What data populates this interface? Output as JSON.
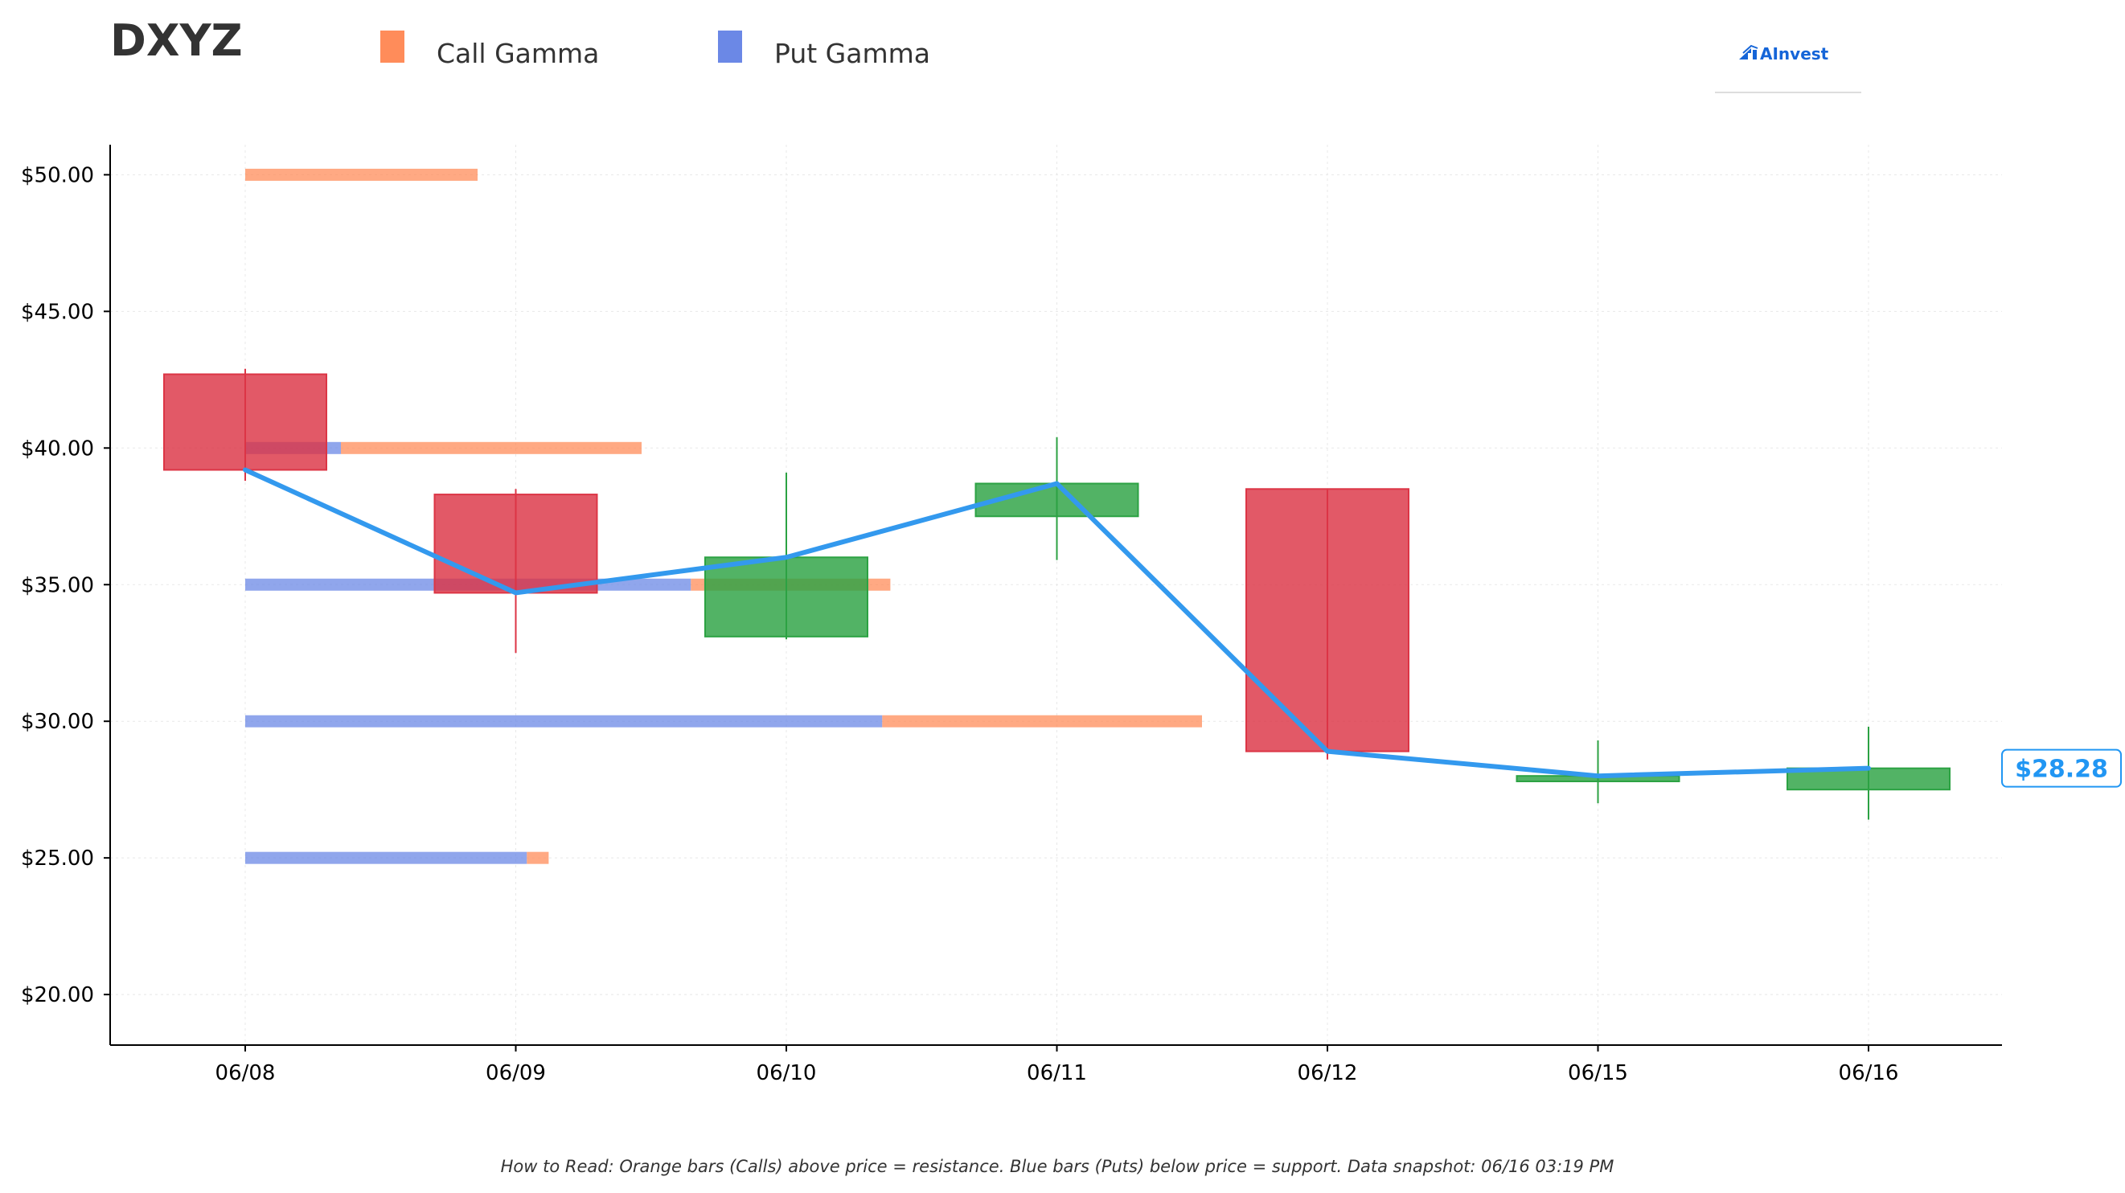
{
  "ticker": "DXYZ",
  "brand": "AInvest",
  "legend": {
    "call_label": "Call Gamma",
    "put_label": "Put Gamma"
  },
  "footnote": "How to Read: Orange bars (Calls) above price = resistance. Blue bars (Puts) below price = support. Data snapshot: 06/16 03:19 PM",
  "last_price_label": "$28.28",
  "colors": {
    "call": "#ff8c5a",
    "put": "#6b88e6",
    "up_candle": "#2ca243",
    "down_candle": "#dc3545",
    "price_line": "#3399ee",
    "price_tag": "#2196f3"
  },
  "chart_data": {
    "type": "candlestick",
    "categories": [
      "06/08",
      "06/09",
      "06/10",
      "06/11",
      "06/12",
      "06/15",
      "06/16"
    ],
    "ohlc": [
      {
        "open": 42.7,
        "high": 42.9,
        "low": 38.8,
        "close": 39.2
      },
      {
        "open": 38.3,
        "high": 38.5,
        "low": 32.5,
        "close": 34.7
      },
      {
        "open": 33.1,
        "high": 39.1,
        "low": 33.0,
        "close": 36.0
      },
      {
        "open": 37.5,
        "high": 40.4,
        "low": 35.9,
        "close": 38.7
      },
      {
        "open": 38.5,
        "high": 38.5,
        "low": 28.6,
        "close": 28.9
      },
      {
        "open": 27.8,
        "high": 29.3,
        "low": 27.0,
        "close": 28.0
      },
      {
        "open": 27.5,
        "high": 29.8,
        "low": 26.4,
        "close": 28.28
      }
    ],
    "price_line": [
      39.2,
      34.7,
      36.0,
      38.7,
      28.9,
      28.0,
      28.28
    ],
    "gamma_levels": [
      {
        "strike": 50,
        "put": 0.0,
        "call": 0.85
      },
      {
        "strike": 40,
        "put": 0.35,
        "call": 1.1
      },
      {
        "strike": 35,
        "put": 1.63,
        "call": 0.73
      },
      {
        "strike": 30,
        "put": 2.33,
        "call": 1.17
      },
      {
        "strike": 25,
        "put": 1.03,
        "call": 0.08
      }
    ],
    "y_ticks": [
      "$50.00",
      "$45.00",
      "$40.00",
      "$35.00",
      "$30.00",
      "$25.00",
      "$20.00"
    ],
    "y_tick_values": [
      50,
      45,
      40,
      35,
      30,
      25,
      20
    ],
    "ylim": [
      18.15,
      51.1
    ],
    "grid": true
  }
}
